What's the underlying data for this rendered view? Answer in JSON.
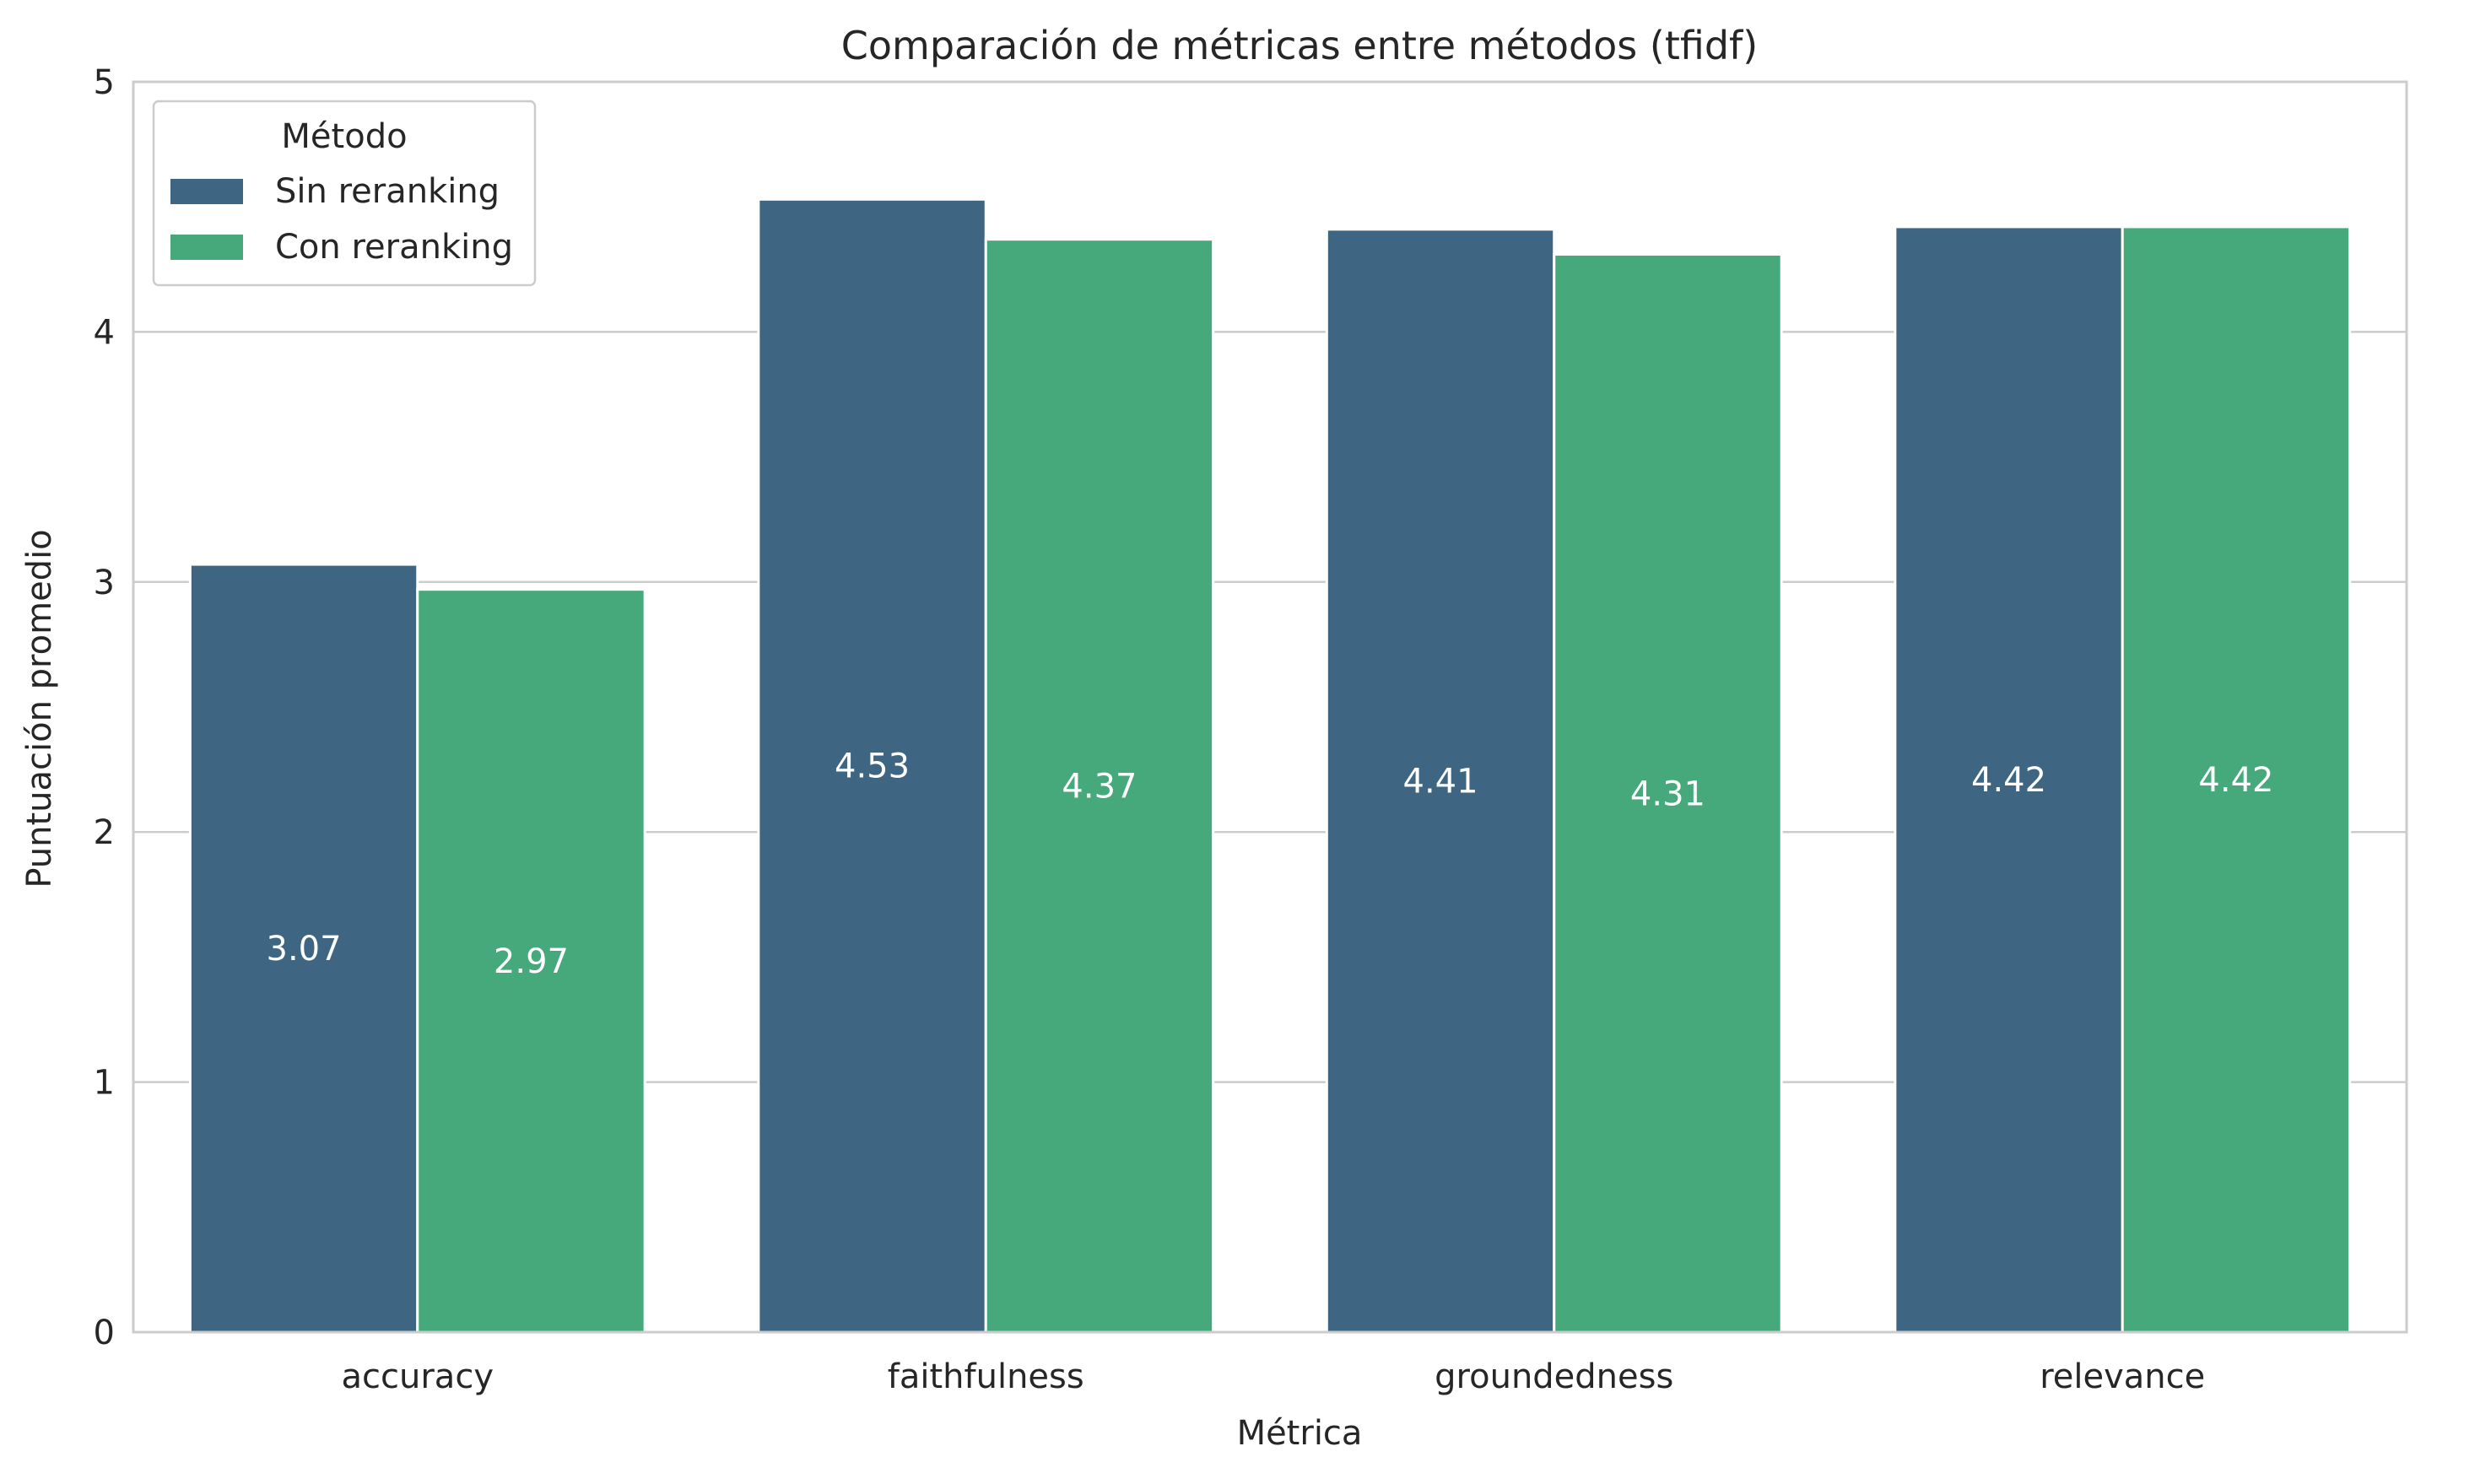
{
  "chart_data": {
    "type": "bar",
    "title": "Comparación de métricas entre métodos (tfidf)",
    "xlabel": "Métrica",
    "ylabel": "Puntuación promedio",
    "categories": [
      "accuracy",
      "faithfulness",
      "groundedness",
      "relevance"
    ],
    "series": [
      {
        "name": "Sin reranking",
        "values": [
          3.07,
          4.53,
          4.41,
          4.42
        ],
        "color": "#3e6682"
      },
      {
        "name": "Con reranking",
        "values": [
          2.97,
          4.37,
          4.31,
          4.42
        ],
        "color": "#46a97b"
      }
    ],
    "data_labels": [
      [
        "3.07",
        "4.53",
        "4.41",
        "4.42"
      ],
      [
        "2.97",
        "4.37",
        "4.31",
        "4.42"
      ]
    ],
    "ylim": [
      0,
      5
    ],
    "yticks": [
      0,
      1,
      2,
      3,
      4,
      5
    ],
    "grid": "horizontal",
    "legend": {
      "title": "Método",
      "placement": "top-left"
    },
    "colors": {
      "grid": "#cccccc",
      "frame": "#cccccc",
      "text": "#262626",
      "data_label": "#ffffff"
    }
  }
}
